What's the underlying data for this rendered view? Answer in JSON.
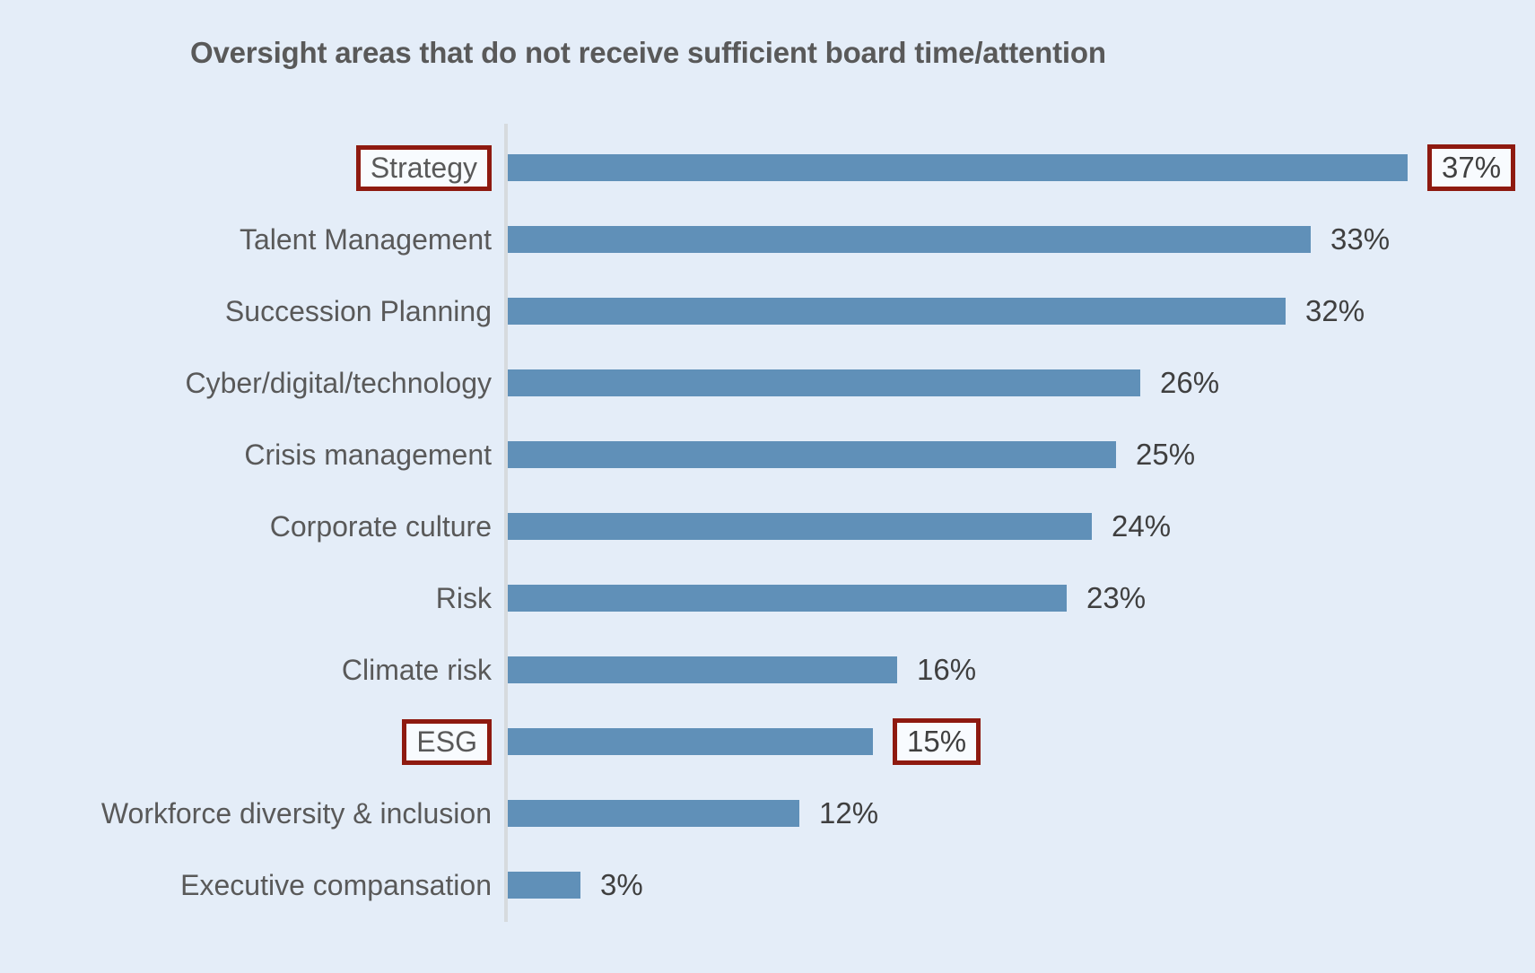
{
  "chart_data": {
    "type": "bar",
    "orientation": "horizontal",
    "title": "Oversight areas that do not receive sufficient board time/attention",
    "categories": [
      "Strategy",
      "Talent Management",
      "Succession Planning",
      "Cyber/digital/technology",
      "Crisis management",
      "Corporate culture",
      "Risk",
      "Climate risk",
      "ESG",
      "Workforce diversity & inclusion",
      "Executive compansation"
    ],
    "values": [
      37,
      33,
      32,
      26,
      25,
      24,
      23,
      16,
      15,
      12,
      3
    ],
    "value_suffix": "%",
    "highlighted_categories": [
      "Strategy",
      "ESG"
    ],
    "xlabel": "",
    "ylabel": "",
    "xlim": [
      0,
      40
    ],
    "grid": false,
    "legend": "none",
    "data_labels": "outside-end",
    "colors": {
      "background": "#e4edf8",
      "bar": "#6090b8",
      "highlight_box_border": "#8e1a10",
      "highlight_box_fill": "#f8fbfe",
      "title_text": "#595959",
      "label_text": "#595959",
      "value_text": "#3f3f3f",
      "axis_line": "#d6dade"
    }
  }
}
